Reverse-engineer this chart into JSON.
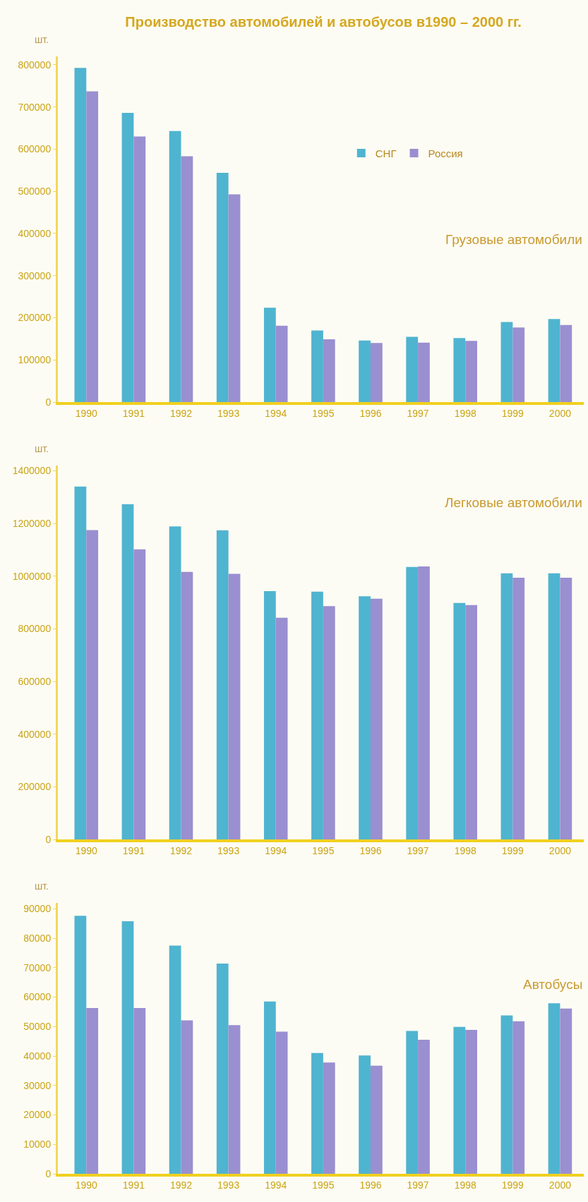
{
  "chart_data": [
    {
      "type": "bar",
      "title": "Производство автомобилей и автобусов в1990 – 2000 гг.",
      "subtitle": "Грузовые автомобили",
      "ylabel": "шт.",
      "categories": [
        "1990",
        "1991",
        "1992",
        "1993",
        "1994",
        "1995",
        "1996",
        "1997",
        "1998",
        "1999",
        "2000"
      ],
      "series": [
        {
          "name": "СНГ",
          "color": "#4fb4d0",
          "values": [
            793000,
            686000,
            643000,
            544000,
            224000,
            170000,
            146000,
            155000,
            152000,
            190000,
            197000
          ]
        },
        {
          "name": "Россия",
          "color": "#9a8fd0",
          "values": [
            737000,
            630000,
            583000,
            493000,
            181000,
            149000,
            140000,
            141000,
            145000,
            177000,
            183000
          ]
        }
      ],
      "ylim": [
        0,
        820000
      ],
      "yticks": [
        0,
        100000,
        200000,
        300000,
        400000,
        500000,
        600000,
        700000,
        800000
      ],
      "grid": false,
      "legend": "top right"
    },
    {
      "type": "bar",
      "subtitle": "Легковые автомобили",
      "ylabel": "шт.",
      "categories": [
        "1990",
        "1991",
        "1992",
        "1993",
        "1994",
        "1995",
        "1996",
        "1997",
        "1998",
        "1999",
        "2000"
      ],
      "series": [
        {
          "color": "#4fb4d0",
          "values": [
            1340000,
            1273000,
            1189000,
            1174000,
            943000,
            941000,
            924000,
            1035000,
            898000,
            1011000,
            1011000
          ]
        },
        {
          "color": "#9a8fd0",
          "values": [
            1175000,
            1102000,
            1016000,
            1009000,
            842000,
            886000,
            914000,
            1037000,
            890000,
            994000,
            994000
          ]
        }
      ],
      "ylim": [
        0,
        1420000
      ],
      "yticks": [
        0,
        200000,
        400000,
        600000,
        800000,
        1000000,
        1200000,
        1400000
      ],
      "grid": false
    },
    {
      "type": "bar",
      "subtitle": "Автобусы",
      "ylabel": "шт.",
      "categories": [
        "1990",
        "1991",
        "1992",
        "1993",
        "1994",
        "1995",
        "1996",
        "1997",
        "1998",
        "1999",
        "2000"
      ],
      "series": [
        {
          "color": "#4fb4d0",
          "values": [
            87600,
            85800,
            77500,
            71400,
            58500,
            41000,
            40200,
            48500,
            49900,
            53800,
            57900
          ]
        },
        {
          "color": "#9a8fd0",
          "values": [
            56300,
            56300,
            52100,
            50500,
            48300,
            37800,
            36700,
            45500,
            48900,
            51800,
            56100
          ]
        }
      ],
      "ylim": [
        0,
        92000
      ],
      "yticks": [
        0,
        10000,
        20000,
        30000,
        40000,
        50000,
        60000,
        70000,
        80000,
        90000
      ],
      "grid": false
    }
  ]
}
